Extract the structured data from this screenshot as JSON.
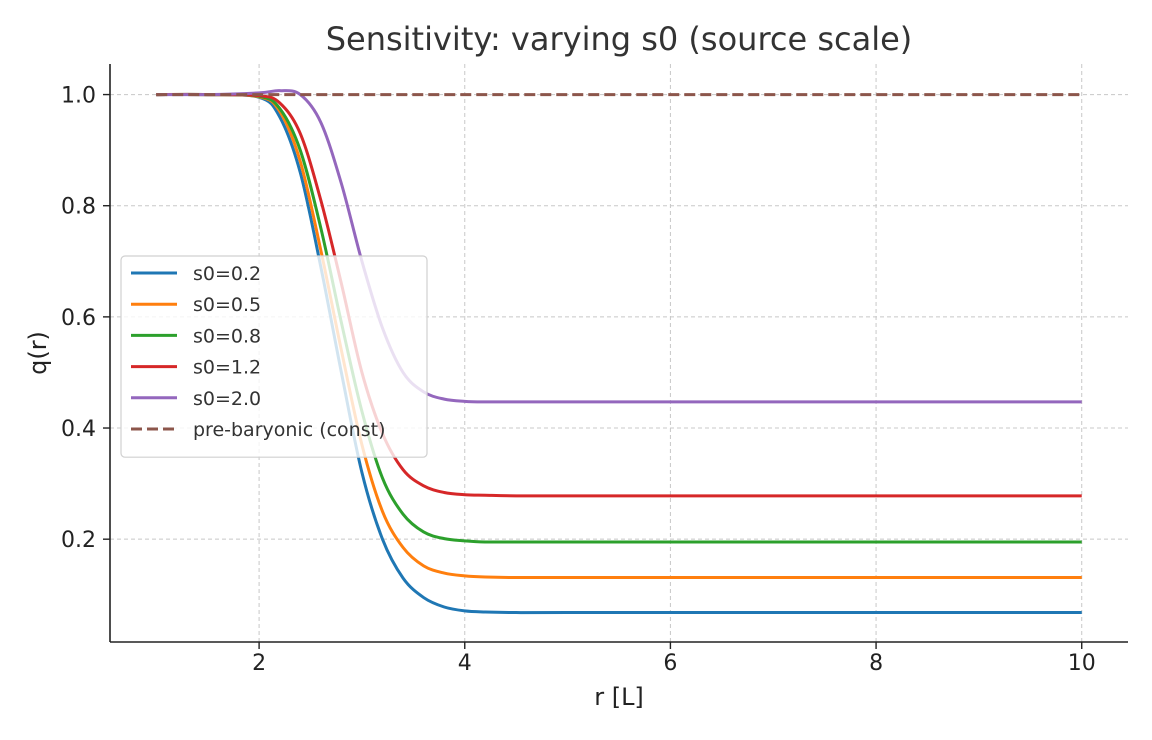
{
  "chart_data": {
    "type": "line",
    "title": "Sensitivity: varying s0 (source scale)",
    "xlabel": "r [L]",
    "ylabel": "q(r)",
    "xlim": [
      0.55,
      10.45
    ],
    "ylim": [
      0.015,
      1.055
    ],
    "xticks": [
      2,
      4,
      6,
      8,
      10
    ],
    "yticks": [
      0.2,
      0.4,
      0.6,
      0.8,
      1.0
    ],
    "xtick_labels": [
      "2",
      "4",
      "6",
      "8",
      "10"
    ],
    "ytick_labels": [
      "0.2",
      "0.4",
      "0.6",
      "0.8",
      "1.0"
    ],
    "grid": true,
    "legend_position": "center-left",
    "series": [
      {
        "name": "s0=0.2",
        "color": "#1f77b4",
        "dash": "solid",
        "x": [
          1,
          1.5,
          2,
          2.2,
          2.4,
          2.6,
          2.8,
          3,
          3.2,
          3.4,
          3.6,
          3.8,
          4,
          4.2,
          4.5,
          5,
          6,
          8,
          10
        ],
        "y": [
          1.0,
          1.0,
          0.995,
          0.96,
          0.86,
          0.69,
          0.5,
          0.32,
          0.2,
          0.13,
          0.095,
          0.078,
          0.071,
          0.069,
          0.068,
          0.068,
          0.068,
          0.068,
          0.068
        ]
      },
      {
        "name": "s0=0.5",
        "color": "#ff7f0e",
        "dash": "solid",
        "x": [
          1,
          1.5,
          2,
          2.2,
          2.4,
          2.6,
          2.8,
          3,
          3.2,
          3.4,
          3.6,
          3.8,
          4,
          4.2,
          4.5,
          5,
          6,
          8,
          10
        ],
        "y": [
          1.0,
          1.0,
          0.996,
          0.97,
          0.88,
          0.72,
          0.54,
          0.37,
          0.25,
          0.185,
          0.152,
          0.139,
          0.134,
          0.132,
          0.131,
          0.131,
          0.131,
          0.131,
          0.131
        ]
      },
      {
        "name": "s0=0.8",
        "color": "#2ca02c",
        "dash": "solid",
        "x": [
          1,
          1.5,
          2,
          2.2,
          2.4,
          2.6,
          2.8,
          3,
          3.2,
          3.4,
          3.6,
          3.8,
          4,
          4.2,
          4.5,
          5,
          6,
          8,
          10
        ],
        "y": [
          1.0,
          1.0,
          0.997,
          0.975,
          0.9,
          0.76,
          0.59,
          0.43,
          0.31,
          0.245,
          0.213,
          0.201,
          0.197,
          0.195,
          0.195,
          0.195,
          0.195,
          0.195,
          0.195
        ]
      },
      {
        "name": "s0=1.2",
        "color": "#d62728",
        "dash": "solid",
        "x": [
          1,
          1.5,
          2,
          2.2,
          2.4,
          2.6,
          2.8,
          3,
          3.2,
          3.4,
          3.6,
          3.8,
          4,
          4.2,
          4.5,
          5,
          6,
          8,
          10
        ],
        "y": [
          1.0,
          1.0,
          0.998,
          0.985,
          0.93,
          0.81,
          0.66,
          0.5,
          0.39,
          0.325,
          0.296,
          0.284,
          0.28,
          0.279,
          0.278,
          0.278,
          0.278,
          0.278,
          0.278
        ]
      },
      {
        "name": "s0=2.0",
        "color": "#9467bd",
        "dash": "solid",
        "x": [
          1,
          1.5,
          2,
          2.2,
          2.4,
          2.6,
          2.8,
          3,
          3.2,
          3.4,
          3.6,
          3.8,
          4,
          4.2,
          4.5,
          5,
          6,
          8,
          10
        ],
        "y": [
          1.0,
          1.0,
          1.003,
          1.007,
          1.0,
          0.95,
          0.84,
          0.7,
          0.58,
          0.5,
          0.465,
          0.452,
          0.448,
          0.447,
          0.447,
          0.447,
          0.447,
          0.447,
          0.447
        ]
      },
      {
        "name": "pre-baryonic (const)",
        "color": "#8c564b",
        "dash": "dashed",
        "x": [
          1,
          10
        ],
        "y": [
          1.0,
          1.0
        ]
      }
    ]
  }
}
